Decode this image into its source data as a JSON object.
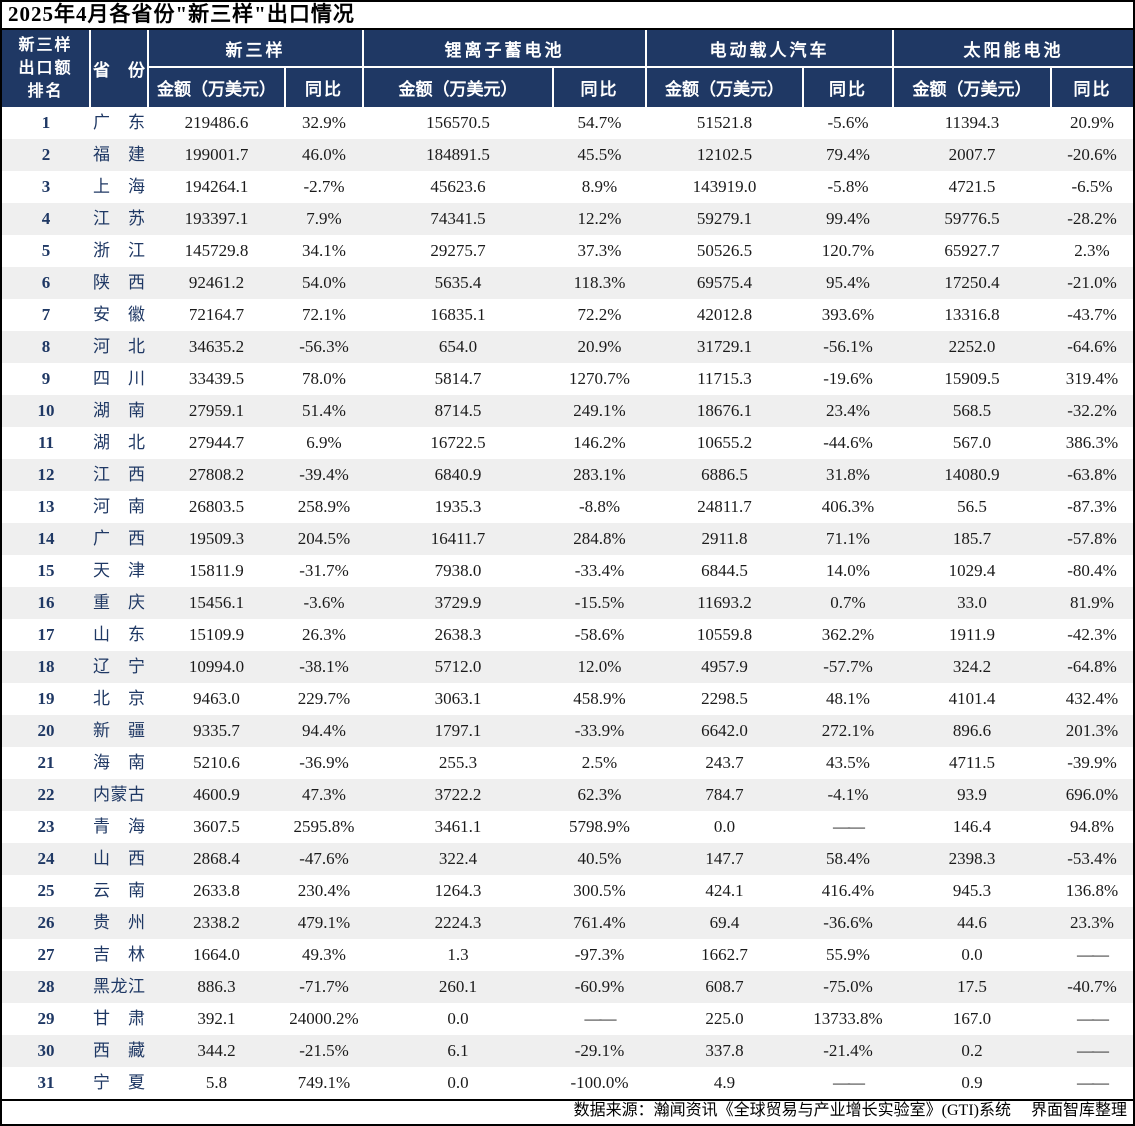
{
  "colors": {
    "header_bg": "#1F3864",
    "header_text": "#FFFFFF",
    "alt_row_bg": "#EFEFEF",
    "rank_province_text": "#1F3864",
    "value_text": "#1A1A1A",
    "outer_border": "#000000"
  },
  "chart_data": {
    "type": "table",
    "title": "2025年4月各省份\"新三样\"出口情况",
    "rank_header": "新三样\n出口额\n排名",
    "province_header": "省份",
    "groups": [
      {
        "label": "新三样"
      },
      {
        "label": "锂离子蓄电池"
      },
      {
        "label": "电动载人汽车"
      },
      {
        "label": "太阳能电池"
      }
    ],
    "amount_header": "金额（万美元）",
    "yoy_header": "同比",
    "rows": [
      {
        "rank": "1",
        "province": "广东",
        "values": [
          "219486.6",
          "32.9%",
          "156570.5",
          "54.7%",
          "51521.8",
          "-5.6%",
          "11394.3",
          "20.9%"
        ]
      },
      {
        "rank": "2",
        "province": "福建",
        "values": [
          "199001.7",
          "46.0%",
          "184891.5",
          "45.5%",
          "12102.5",
          "79.4%",
          "2007.7",
          "-20.6%"
        ]
      },
      {
        "rank": "3",
        "province": "上海",
        "values": [
          "194264.1",
          "-2.7%",
          "45623.6",
          "8.9%",
          "143919.0",
          "-5.8%",
          "4721.5",
          "-6.5%"
        ]
      },
      {
        "rank": "4",
        "province": "江苏",
        "values": [
          "193397.1",
          "7.9%",
          "74341.5",
          "12.2%",
          "59279.1",
          "99.4%",
          "59776.5",
          "-28.2%"
        ]
      },
      {
        "rank": "5",
        "province": "浙江",
        "values": [
          "145729.8",
          "34.1%",
          "29275.7",
          "37.3%",
          "50526.5",
          "120.7%",
          "65927.7",
          "2.3%"
        ]
      },
      {
        "rank": "6",
        "province": "陕西",
        "values": [
          "92461.2",
          "54.0%",
          "5635.4",
          "118.3%",
          "69575.4",
          "95.4%",
          "17250.4",
          "-21.0%"
        ]
      },
      {
        "rank": "7",
        "province": "安徽",
        "values": [
          "72164.7",
          "72.1%",
          "16835.1",
          "72.2%",
          "42012.8",
          "393.6%",
          "13316.8",
          "-43.7%"
        ]
      },
      {
        "rank": "8",
        "province": "河北",
        "values": [
          "34635.2",
          "-56.3%",
          "654.0",
          "20.9%",
          "31729.1",
          "-56.1%",
          "2252.0",
          "-64.6%"
        ]
      },
      {
        "rank": "9",
        "province": "四川",
        "values": [
          "33439.5",
          "78.0%",
          "5814.7",
          "1270.7%",
          "11715.3",
          "-19.6%",
          "15909.5",
          "319.4%"
        ]
      },
      {
        "rank": "10",
        "province": "湖南",
        "values": [
          "27959.1",
          "51.4%",
          "8714.5",
          "249.1%",
          "18676.1",
          "23.4%",
          "568.5",
          "-32.2%"
        ]
      },
      {
        "rank": "11",
        "province": "湖北",
        "values": [
          "27944.7",
          "6.9%",
          "16722.5",
          "146.2%",
          "10655.2",
          "-44.6%",
          "567.0",
          "386.3%"
        ]
      },
      {
        "rank": "12",
        "province": "江西",
        "values": [
          "27808.2",
          "-39.4%",
          "6840.9",
          "283.1%",
          "6886.5",
          "31.8%",
          "14080.9",
          "-63.8%"
        ]
      },
      {
        "rank": "13",
        "province": "河南",
        "values": [
          "26803.5",
          "258.9%",
          "1935.3",
          "-8.8%",
          "24811.7",
          "406.3%",
          "56.5",
          "-87.3%"
        ]
      },
      {
        "rank": "14",
        "province": "广西",
        "values": [
          "19509.3",
          "204.5%",
          "16411.7",
          "284.8%",
          "2911.8",
          "71.1%",
          "185.7",
          "-57.8%"
        ]
      },
      {
        "rank": "15",
        "province": "天津",
        "values": [
          "15811.9",
          "-31.7%",
          "7938.0",
          "-33.4%",
          "6844.5",
          "14.0%",
          "1029.4",
          "-80.4%"
        ]
      },
      {
        "rank": "16",
        "province": "重庆",
        "values": [
          "15456.1",
          "-3.6%",
          "3729.9",
          "-15.5%",
          "11693.2",
          "0.7%",
          "33.0",
          "81.9%"
        ]
      },
      {
        "rank": "17",
        "province": "山东",
        "values": [
          "15109.9",
          "26.3%",
          "2638.3",
          "-58.6%",
          "10559.8",
          "362.2%",
          "1911.9",
          "-42.3%"
        ]
      },
      {
        "rank": "18",
        "province": "辽宁",
        "values": [
          "10994.0",
          "-38.1%",
          "5712.0",
          "12.0%",
          "4957.9",
          "-57.7%",
          "324.2",
          "-64.8%"
        ]
      },
      {
        "rank": "19",
        "province": "北京",
        "values": [
          "9463.0",
          "229.7%",
          "3063.1",
          "458.9%",
          "2298.5",
          "48.1%",
          "4101.4",
          "432.4%"
        ]
      },
      {
        "rank": "20",
        "province": "新疆",
        "values": [
          "9335.7",
          "94.4%",
          "1797.1",
          "-33.9%",
          "6642.0",
          "272.1%",
          "896.6",
          "201.3%"
        ]
      },
      {
        "rank": "21",
        "province": "海南",
        "values": [
          "5210.6",
          "-36.9%",
          "255.3",
          "2.5%",
          "243.7",
          "43.5%",
          "4711.5",
          "-39.9%"
        ]
      },
      {
        "rank": "22",
        "province": "内蒙古",
        "values": [
          "4600.9",
          "47.3%",
          "3722.2",
          "62.3%",
          "784.7",
          "-4.1%",
          "93.9",
          "696.0%"
        ]
      },
      {
        "rank": "23",
        "province": "青海",
        "values": [
          "3607.5",
          "2595.8%",
          "3461.1",
          "5798.9%",
          "0.0",
          "——",
          "146.4",
          "94.8%"
        ]
      },
      {
        "rank": "24",
        "province": "山西",
        "values": [
          "2868.4",
          "-47.6%",
          "322.4",
          "40.5%",
          "147.7",
          "58.4%",
          "2398.3",
          "-53.4%"
        ]
      },
      {
        "rank": "25",
        "province": "云南",
        "values": [
          "2633.8",
          "230.4%",
          "1264.3",
          "300.5%",
          "424.1",
          "416.4%",
          "945.3",
          "136.8%"
        ]
      },
      {
        "rank": "26",
        "province": "贵州",
        "values": [
          "2338.2",
          "479.1%",
          "2224.3",
          "761.4%",
          "69.4",
          "-36.6%",
          "44.6",
          "23.3%"
        ]
      },
      {
        "rank": "27",
        "province": "吉林",
        "values": [
          "1664.0",
          "49.3%",
          "1.3",
          "-97.3%",
          "1662.7",
          "55.9%",
          "0.0",
          "——"
        ]
      },
      {
        "rank": "28",
        "province": "黑龙江",
        "values": [
          "886.3",
          "-71.7%",
          "260.1",
          "-60.9%",
          "608.7",
          "-75.0%",
          "17.5",
          "-40.7%"
        ]
      },
      {
        "rank": "29",
        "province": "甘肃",
        "values": [
          "392.1",
          "24000.2%",
          "0.0",
          "——",
          "225.0",
          "13733.8%",
          "167.0",
          "——"
        ]
      },
      {
        "rank": "30",
        "province": "西藏",
        "values": [
          "344.2",
          "-21.5%",
          "6.1",
          "-29.1%",
          "337.8",
          "-21.4%",
          "0.2",
          "——"
        ]
      },
      {
        "rank": "31",
        "province": "宁夏",
        "values": [
          "5.8",
          "749.1%",
          "0.0",
          "-100.0%",
          "4.9",
          "——",
          "0.9",
          "——"
        ]
      }
    ],
    "source_note": "数据来源：瀚闻资讯《全球贸易与产业增长实验室》(GTI)系统　 界面智库整理"
  }
}
